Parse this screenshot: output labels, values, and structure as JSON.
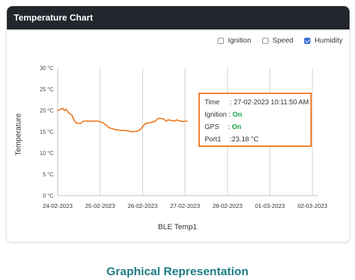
{
  "header": {
    "title": "Temperature Chart"
  },
  "legend": [
    {
      "label": "Ignition",
      "checked": false
    },
    {
      "label": "Speed",
      "checked": false
    },
    {
      "label": "Humidity",
      "checked": true
    }
  ],
  "tooltip": {
    "time_label": "Time",
    "time_value": ": 27-02-2023 10:11:50 AM",
    "ignition_label": "Ignition",
    "ignition_value": "On",
    "gps_label": "GPS",
    "gps_value": "On",
    "port_label": "Port1",
    "port_value": ":23.18",
    "port_unit": "°C"
  },
  "chart_data": {
    "type": "line",
    "title": "Temperature Chart",
    "xlabel": "BLE Temp1",
    "ylabel": "Temperature",
    "ylim": [
      0,
      30
    ],
    "yticks": [
      "0 °C",
      "5 °C",
      "10 °C",
      "15 °C",
      "20 °C",
      "25 °C",
      "30 °C"
    ],
    "ytick_values": [
      0,
      5,
      10,
      15,
      20,
      25,
      30
    ],
    "xticks": [
      "24-02-2023",
      "25-02-2023",
      "26-02-2023",
      "27-02-2023",
      "28-02-2023",
      "01-03-2023",
      "02-03-2023"
    ],
    "xlim": [
      0,
      6
    ],
    "grid": "vertical",
    "line_color": "#ee7a22",
    "series": [
      {
        "x": [
          0,
          0.05,
          0.12,
          0.16,
          0.2,
          0.25,
          0.3,
          0.34,
          0.4,
          0.45,
          0.5,
          0.55,
          0.6,
          0.65,
          0.8,
          0.95,
          1.05,
          1.15,
          1.2,
          1.35,
          1.5,
          1.6,
          1.75,
          1.9,
          1.95,
          2.0,
          2.05,
          2.1,
          2.2,
          2.3,
          2.35,
          2.4,
          2.5,
          2.55,
          2.6,
          2.7,
          2.75,
          2.8,
          2.85,
          2.9,
          2.95,
          3.0,
          3.05
        ],
        "y": [
          20,
          20.2,
          20.5,
          20,
          20.3,
          19.5,
          19.2,
          18.8,
          17.5,
          17,
          17,
          17,
          17.5,
          17.5,
          17.5,
          17.5,
          17.2,
          16.5,
          16,
          15.5,
          15.3,
          15.3,
          15,
          15.2,
          15.6,
          16.2,
          16.8,
          17,
          17.2,
          17.5,
          18,
          18.2,
          18,
          17.5,
          17.8,
          17.6,
          17.5,
          17.8,
          17.6,
          17.5,
          17.4,
          17.5,
          17.5
        ]
      }
    ]
  },
  "footer": {
    "title": "Graphical Representation"
  }
}
